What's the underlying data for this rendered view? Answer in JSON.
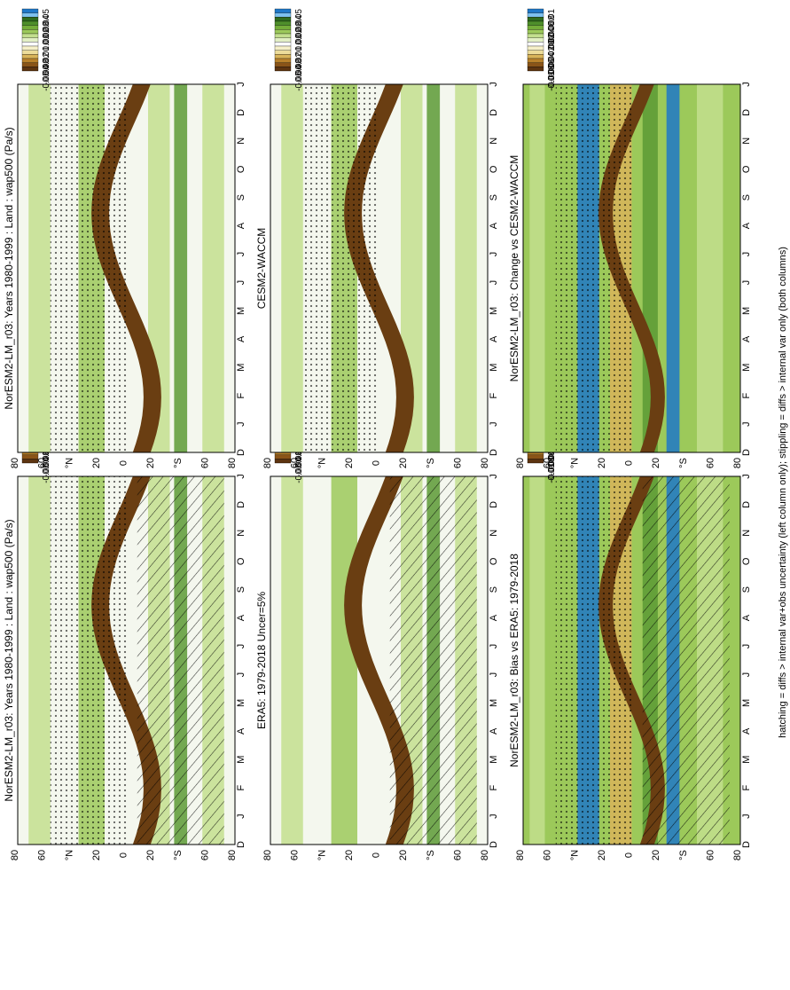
{
  "figure": {
    "footer": "hatching = diffs > internal var+obs uncertainty (left column only); stippling = diffs > internal var only (both columns)"
  },
  "chart_data": [
    {
      "id": "p1",
      "type": "heatmap",
      "title": "NorESM2-LM_r03: Years 1980-1999 : Land : wap500 (Pa/s)",
      "x_ticks": [
        "D",
        "J",
        "F",
        "M",
        "A",
        "M",
        "J",
        "J",
        "A",
        "S",
        "O",
        "N",
        "D",
        "J"
      ],
      "y_ticks": [
        "80",
        "60",
        "°N",
        "20",
        "0",
        "20",
        "°S",
        "60",
        "80"
      ],
      "colorbar": [
        "0.05",
        "0.04",
        "0.03",
        "0.02",
        "0.01",
        "0",
        "-0.01",
        "-0.02",
        "-0.03",
        "-0.04",
        "-0.05"
      ],
      "hatching": true,
      "stippling": true
    },
    {
      "id": "p2",
      "type": "heatmap",
      "title": "NorESM2-LM_r03: Years 1980-1999 : Land : wap500 (Pa/s)",
      "x_ticks": [
        "D",
        "J",
        "F",
        "M",
        "A",
        "M",
        "J",
        "J",
        "A",
        "S",
        "O",
        "N",
        "D",
        "J"
      ],
      "y_ticks": [
        "80",
        "60",
        "°N",
        "20",
        "0",
        "20",
        "°S",
        "60",
        "80"
      ],
      "colorbar": [
        "0.05",
        "0.04",
        "0.03",
        "0.02",
        "0.01",
        "0",
        "-0.01",
        "-0.02",
        "-0.03",
        "-0.04",
        "-0.05"
      ],
      "hatching": false,
      "stippling": true
    },
    {
      "id": "p3",
      "type": "heatmap",
      "title": "ERA5: 1979-2018 Uncer=5%",
      "x_ticks": [
        "D",
        "J",
        "F",
        "M",
        "A",
        "M",
        "J",
        "J",
        "A",
        "S",
        "O",
        "N",
        "D",
        "J"
      ],
      "y_ticks": [
        "80",
        "60",
        "°N",
        "20",
        "0",
        "20",
        "°S",
        "60",
        "80"
      ],
      "colorbar": [
        "0.05",
        "0.04",
        "0.03",
        "0.02",
        "0.01",
        "0",
        "-0.01",
        "-0.02",
        "-0.03",
        "-0.04",
        "-0.05"
      ],
      "hatching": true,
      "stippling": false
    },
    {
      "id": "p4",
      "type": "heatmap",
      "title": "CESM2-WACCM",
      "x_ticks": [
        "D",
        "J",
        "F",
        "M",
        "A",
        "M",
        "J",
        "J",
        "A",
        "S",
        "O",
        "N",
        "D",
        "J"
      ],
      "y_ticks": [
        "80",
        "60",
        "°N",
        "20",
        "0",
        "20",
        "°S",
        "60",
        "80"
      ],
      "colorbar": [
        "0.05",
        "0.04",
        "0.03",
        "0.02",
        "0.01",
        "0",
        "-0.01",
        "-0.02",
        "-0.03",
        "-0.04",
        "-0.05"
      ],
      "hatching": false,
      "stippling": true
    },
    {
      "id": "p5",
      "type": "heatmap",
      "title": "NorESM2-LM_r03: Bias vs ERA5: 1979-2018",
      "x_ticks": [
        "D",
        "J",
        "F",
        "M",
        "A",
        "M",
        "J",
        "J",
        "A",
        "S",
        "O",
        "N",
        "D",
        "J"
      ],
      "y_ticks": [
        "80",
        "60",
        "°N",
        "20",
        "0",
        "20",
        "°S",
        "60",
        "80"
      ],
      "colorbar": [
        "0.01",
        "0.008",
        "0.006",
        "0.004",
        "0.002",
        "0",
        "-0.002",
        "-0.004",
        "-0.006",
        "-0.008",
        "-0.01"
      ],
      "hatching": true,
      "stippling": true
    },
    {
      "id": "p6",
      "type": "heatmap",
      "title": "NorESM2-LM_r03: Change vs CESM2-WACCM",
      "x_ticks": [
        "D",
        "J",
        "F",
        "M",
        "A",
        "M",
        "J",
        "J",
        "A",
        "S",
        "O",
        "N",
        "D",
        "J"
      ],
      "y_ticks": [
        "80",
        "60",
        "°N",
        "20",
        "0",
        "20",
        "°S",
        "60",
        "80"
      ],
      "colorbar": [
        "0.01",
        "0.008",
        "0.006",
        "0.004",
        "0.002",
        "0",
        "-0.002",
        "-0.004",
        "-0.006",
        "-0.008",
        "-0.01"
      ],
      "hatching": false,
      "stippling": true
    }
  ],
  "colorbar_colors": [
    "#1f78c8",
    "#7ec0ee",
    "#2f6b1e",
    "#4e8f2b",
    "#74ad3a",
    "#9cc95a",
    "#c3df8e",
    "#e2efc4",
    "#ffffff",
    "#f6f0c8",
    "#ecdc9a",
    "#d9b45a",
    "#b9822c",
    "#8a5418",
    "#5c3410"
  ],
  "colors": {
    "text": "#000000",
    "frame": "#000000",
    "pale": "#f4f7ee",
    "light_green": "#c3df8e",
    "mid_green": "#9cc95a",
    "dark_green": "#5c9a35",
    "brown": "#6a3e12",
    "tan": "#d9b45a",
    "blue": "#1f78c8"
  }
}
